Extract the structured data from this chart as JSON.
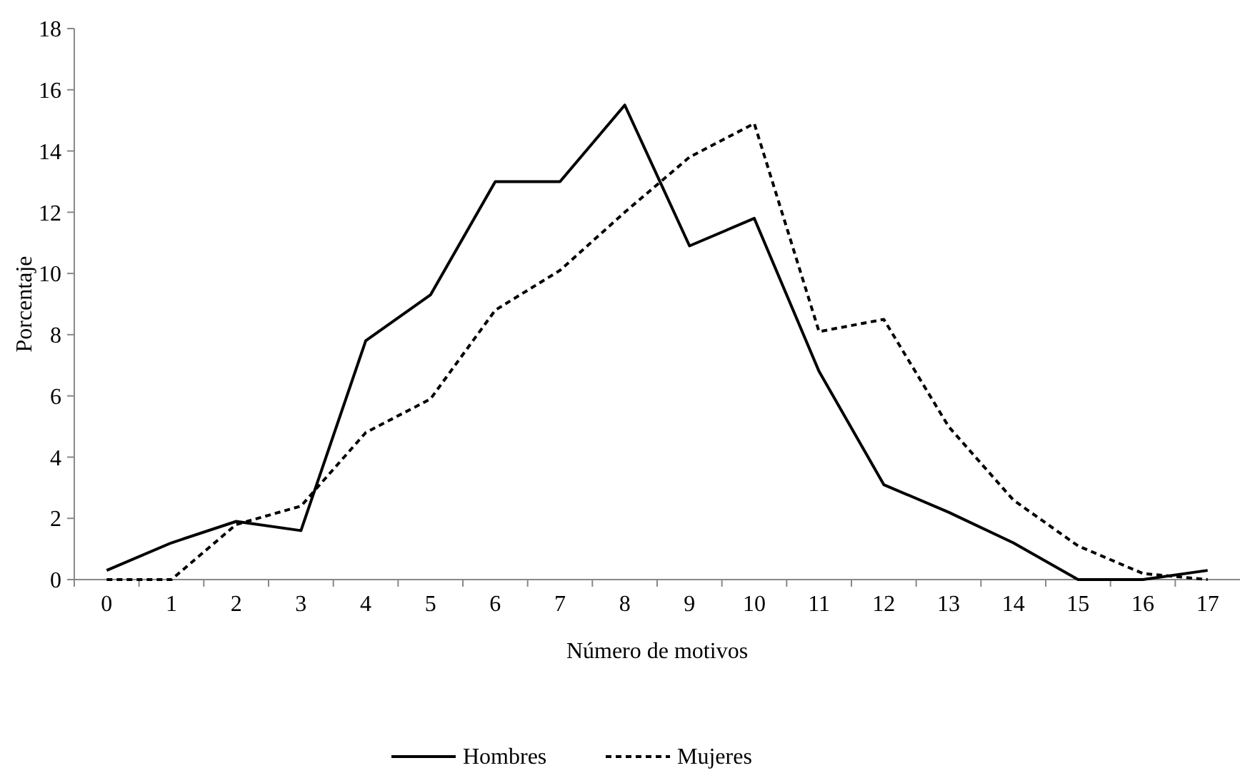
{
  "chart_data": {
    "type": "line",
    "xlabel": "Número de motivos",
    "ylabel": "Porcentaje",
    "categories": [
      "0",
      "1",
      "2",
      "3",
      "4",
      "5",
      "6",
      "7",
      "8",
      "9",
      "10",
      "11",
      "12",
      "13",
      "14",
      "15",
      "16",
      "17"
    ],
    "ylim": [
      0,
      18
    ],
    "yticks": [
      0,
      2,
      4,
      6,
      8,
      10,
      12,
      14,
      16,
      18
    ],
    "grid": false,
    "legend": "bottom",
    "marker": "none",
    "series": [
      {
        "name": "Hombres",
        "color": "#000000",
        "line_style": "solid",
        "values": [
          0.3,
          1.2,
          1.9,
          1.6,
          7.8,
          9.3,
          13,
          13,
          15.5,
          10.9,
          11.8,
          6.8,
          3.1,
          2.2,
          1.2,
          0,
          0,
          0.3
        ]
      },
      {
        "name": "Mujeres",
        "color": "#000000",
        "line_style": "dashed",
        "values": [
          0,
          0,
          1.8,
          2.4,
          4.8,
          5.9,
          8.8,
          10.1,
          12,
          13.8,
          14.9,
          8.1,
          8.5,
          5,
          2.6,
          1.1,
          0.2,
          0
        ]
      }
    ]
  }
}
